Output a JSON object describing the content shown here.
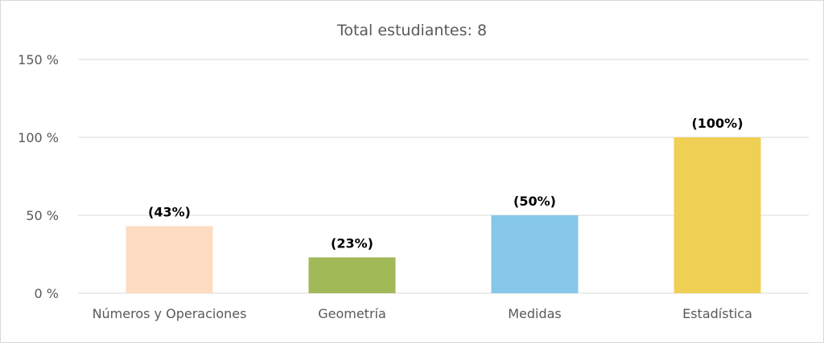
{
  "chart_data": {
    "type": "bar",
    "title": "Total estudiantes: 8",
    "categories": [
      "Números y Operaciones",
      "Geometría",
      "Medidas",
      "Estadística"
    ],
    "values": [
      43,
      23,
      50,
      100
    ],
    "data_labels": [
      "(43%)",
      "(23%)",
      "(50%)",
      "(100%)"
    ],
    "colors": [
      "#fddcc3",
      "#a2b958",
      "#87c7ea",
      "#f0cf55"
    ],
    "ylim": [
      0,
      150
    ],
    "yticks": [
      0,
      50,
      100,
      150
    ],
    "ytick_labels": [
      "0 %",
      "50 %",
      "100 %",
      "150 %"
    ],
    "grid": true,
    "legend": "none",
    "xlabel": "",
    "ylabel": ""
  }
}
